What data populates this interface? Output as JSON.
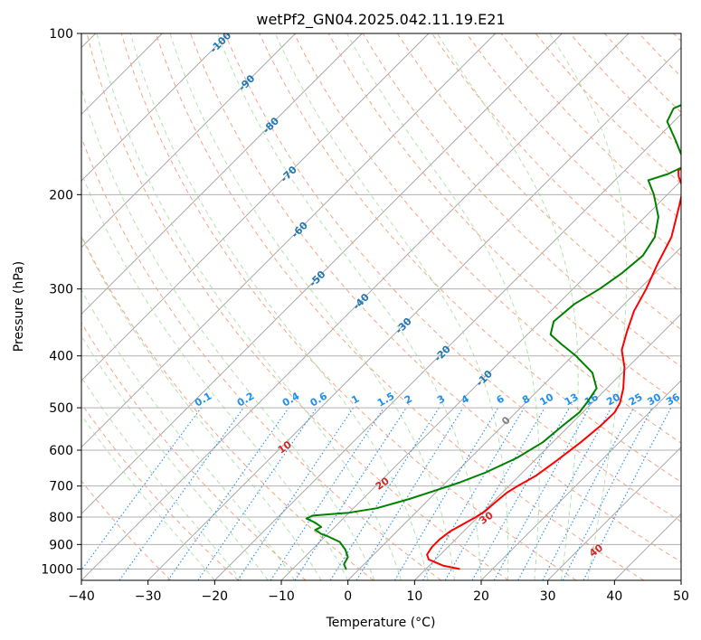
{
  "chart_data": {
    "type": "line",
    "subtype": "skew-t log-p diagram",
    "title": "wetPf2_GN04.2025.042.11.19.E21",
    "xlabel": "Temperature (°C)",
    "ylabel": "Pressure (hPa)",
    "xlim": [
      -40,
      50
    ],
    "ylim": [
      1050,
      100
    ],
    "y_scale": "log",
    "grid": true,
    "xticks": [
      "−40",
      "−30",
      "−20",
      "−10",
      "0",
      "10",
      "20",
      "30",
      "40",
      "50"
    ],
    "xtick_values": [
      -40,
      -30,
      -20,
      -10,
      0,
      10,
      20,
      30,
      40,
      50
    ],
    "yticks": [
      "100",
      "200",
      "300",
      "400",
      "500",
      "600",
      "700",
      "800",
      "900",
      "1000"
    ],
    "ytick_values": [
      100,
      200,
      300,
      400,
      500,
      600,
      700,
      800,
      900,
      1000
    ],
    "background_lines": {
      "skewed_isotherms": {
        "color": "#a0a0a0",
        "style": "solid"
      },
      "dry_adiabats": {
        "color": "#f4a582",
        "style": "dashed",
        "labels": [
          "10",
          "20",
          "30",
          "40"
        ],
        "label_color": "#d62728"
      },
      "moist_adiabats": {
        "color": "#a1d99b",
        "style": "dashed"
      },
      "mixing_ratio_lines": {
        "color": "#1f8ff0",
        "style": "dotted",
        "labels": [
          "0.1",
          "0.2",
          "0.4",
          "0.6",
          "1",
          "1.5",
          "2",
          "3",
          "4",
          "6",
          "8",
          "10",
          "13",
          "16",
          "20",
          "25",
          "30",
          "36"
        ]
      },
      "isotherm_labels": {
        "color": "#1f77b4",
        "labels": [
          "-100",
          "-90",
          "-80",
          "-70",
          "-60",
          "-50",
          "-40",
          "-30",
          "-20",
          "-10"
        ]
      },
      "zero_label": "0"
    },
    "series": [
      {
        "role": "temperature",
        "color": "#ff0000",
        "points": [
          [
            1000,
            15.0
          ],
          [
            985,
            12.0
          ],
          [
            960,
            9.0
          ],
          [
            940,
            8.0
          ],
          [
            910,
            7.6
          ],
          [
            880,
            7.6
          ],
          [
            850,
            8.0
          ],
          [
            820,
            9.0
          ],
          [
            800,
            9.7
          ],
          [
            780,
            10.2
          ],
          [
            750,
            10.4
          ],
          [
            720,
            10.7
          ],
          [
            700,
            11.3
          ],
          [
            670,
            12.5
          ],
          [
            630,
            13.3
          ],
          [
            580,
            14.2
          ],
          [
            540,
            14.7
          ],
          [
            510,
            14.8
          ],
          [
            490,
            14.2
          ],
          [
            460,
            12.5
          ],
          [
            420,
            9.5
          ],
          [
            390,
            6.5
          ],
          [
            360,
            4.5
          ],
          [
            330,
            2.5
          ],
          [
            300,
            1.0
          ],
          [
            270,
            -1.0
          ],
          [
            240,
            -3.0
          ],
          [
            210,
            -6.5
          ],
          [
            195,
            -8.5
          ],
          [
            185,
            -11.0
          ],
          [
            180,
            -12.0
          ],
          [
            172,
            -10.5
          ],
          [
            162,
            -6.0
          ],
          [
            155,
            -2.0
          ],
          [
            148,
            4.5
          ],
          [
            138,
            12.0
          ],
          [
            128,
            15.0
          ],
          [
            118,
            15.0
          ],
          [
            112,
            12.5
          ],
          [
            106,
            13.0
          ],
          [
            100,
            16.0
          ]
        ]
      },
      {
        "role": "dewpoint",
        "color": "#008000",
        "points": [
          [
            1000,
            -2.0
          ],
          [
            980,
            -3.0
          ],
          [
            950,
            -3.5
          ],
          [
            920,
            -5.0
          ],
          [
            890,
            -7.0
          ],
          [
            870,
            -9.5
          ],
          [
            860,
            -11.0
          ],
          [
            845,
            -12.5
          ],
          [
            835,
            -12.0
          ],
          [
            820,
            -13.5
          ],
          [
            805,
            -15.5
          ],
          [
            795,
            -15.0
          ],
          [
            785,
            -10.0
          ],
          [
            770,
            -6.5
          ],
          [
            740,
            -3.0
          ],
          [
            710,
            0.0
          ],
          [
            690,
            2.0
          ],
          [
            660,
            4.5
          ],
          [
            620,
            7.0
          ],
          [
            580,
            8.5
          ],
          [
            540,
            9.0
          ],
          [
            510,
            9.5
          ],
          [
            490,
            9.2
          ],
          [
            460,
            8.5
          ],
          [
            430,
            5.5
          ],
          [
            400,
            0.5
          ],
          [
            380,
            -3.5
          ],
          [
            365,
            -6.5
          ],
          [
            345,
            -8.0
          ],
          [
            320,
            -7.5
          ],
          [
            300,
            -6.0
          ],
          [
            280,
            -5.0
          ],
          [
            260,
            -4.5
          ],
          [
            240,
            -5.5
          ],
          [
            220,
            -8.0
          ],
          [
            200,
            -12.0
          ],
          [
            188,
            -15.0
          ],
          [
            183,
            -13.0
          ],
          [
            176,
            -11.5
          ],
          [
            168,
            -14.0
          ],
          [
            158,
            -17.0
          ],
          [
            146,
            -21.0
          ],
          [
            138,
            -22.0
          ],
          [
            132,
            -20.0
          ],
          [
            124,
            -15.0
          ],
          [
            116,
            -11.0
          ],
          [
            108,
            -9.0
          ],
          [
            100,
            -8.0
          ]
        ]
      }
    ]
  }
}
